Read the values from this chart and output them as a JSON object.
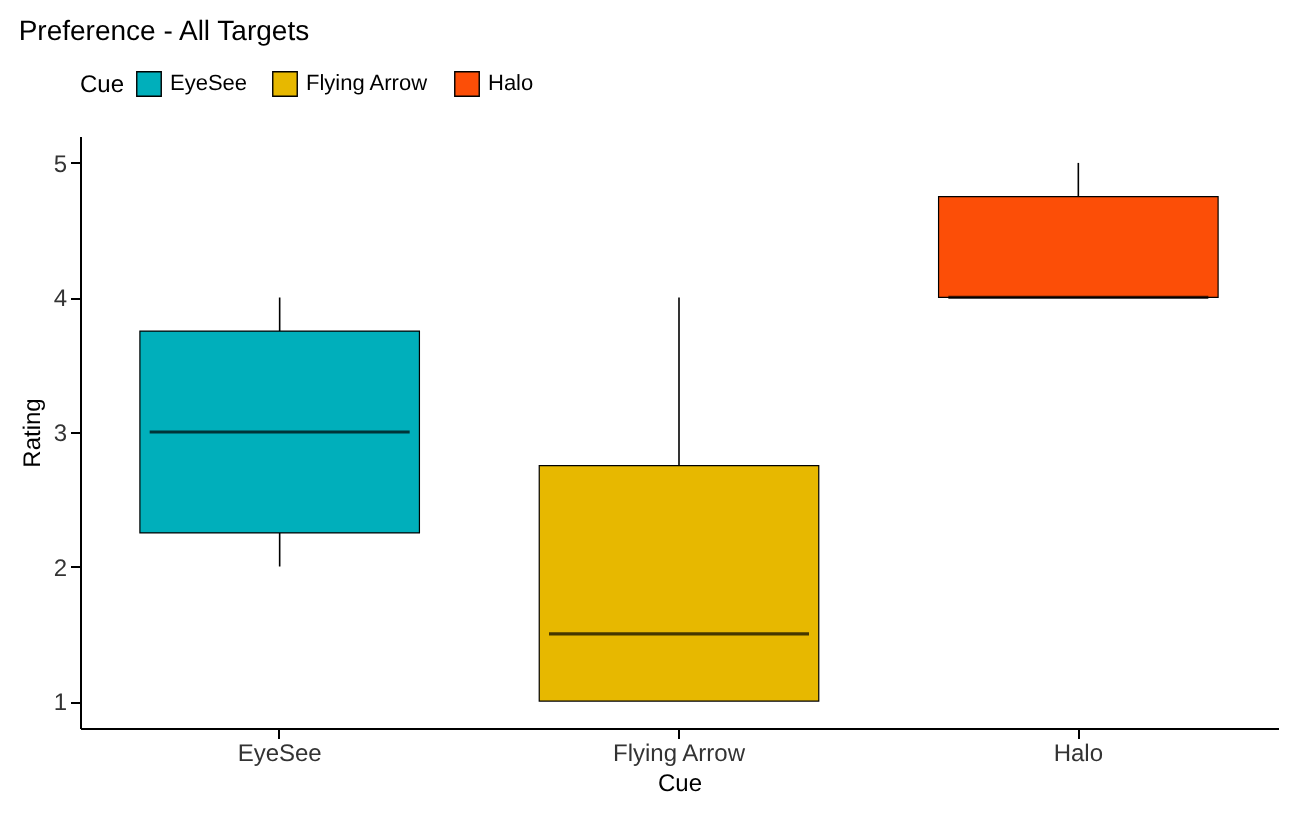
{
  "chart_data": {
    "type": "box",
    "title": "Preference - All Targets",
    "xlabel": "Cue",
    "ylabel": "Rating",
    "legend_title": "Cue",
    "categories": [
      "EyeSee",
      "Flying Arrow",
      "Halo"
    ],
    "series": [
      {
        "name": "EyeSee",
        "color": "#00afbb",
        "boxes": [
          {
            "low": 2,
            "q1": 2.25,
            "median": 3,
            "q3": 3.75,
            "high": 4
          },
          null,
          null
        ]
      },
      {
        "name": "Flying Arrow",
        "color": "#e7b800",
        "boxes": [
          null,
          {
            "low": 1,
            "q1": 1,
            "median": 1.5,
            "q3": 2.75,
            "high": 4
          },
          null
        ]
      },
      {
        "name": "Halo",
        "color": "#fc4e07",
        "boxes": [
          null,
          null,
          {
            "low": 4,
            "q1": 4,
            "median": 4,
            "q3": 4.75,
            "high": 5
          }
        ]
      }
    ],
    "ylim": [
      0.8,
      5.2
    ],
    "yticks": [
      1,
      2,
      3,
      4,
      5
    ],
    "legend": "top"
  }
}
